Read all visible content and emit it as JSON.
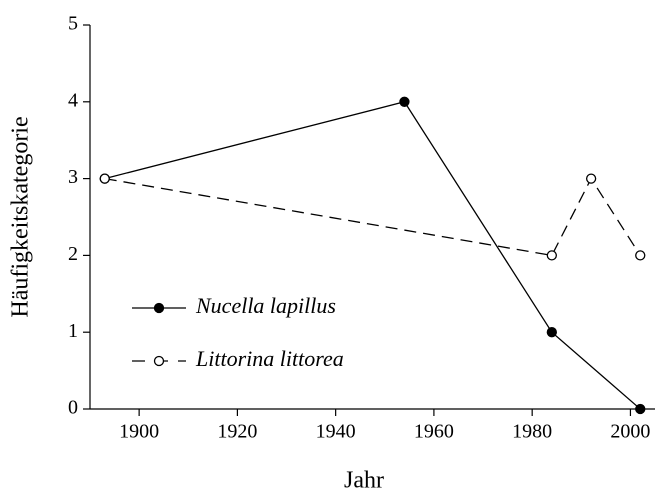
{
  "chart_data": {
    "type": "line",
    "xlabel": "Jahr",
    "ylabel": "Häufigkeitskategorie",
    "series": [
      {
        "name": "Nucella lapillus",
        "color": "#000000",
        "style": "solid",
        "marker": "filled",
        "x": [
          1893,
          1954,
          1984,
          2002
        ],
        "values": [
          3,
          4,
          1,
          0
        ]
      },
      {
        "name": "Littorina littorea",
        "color": "#000000",
        "style": "dashed",
        "marker": "open",
        "x": [
          1893,
          1984,
          1992,
          2002
        ],
        "values": [
          3,
          2,
          3,
          2
        ]
      }
    ],
    "xlim": [
      1890,
      2005
    ],
    "xticks": [
      1900,
      1920,
      1940,
      1960,
      1980,
      2000
    ],
    "ylim": [
      0,
      5
    ],
    "yticks": [
      0,
      1,
      2,
      3,
      4,
      5
    ],
    "grid": false,
    "legend": "center left"
  }
}
